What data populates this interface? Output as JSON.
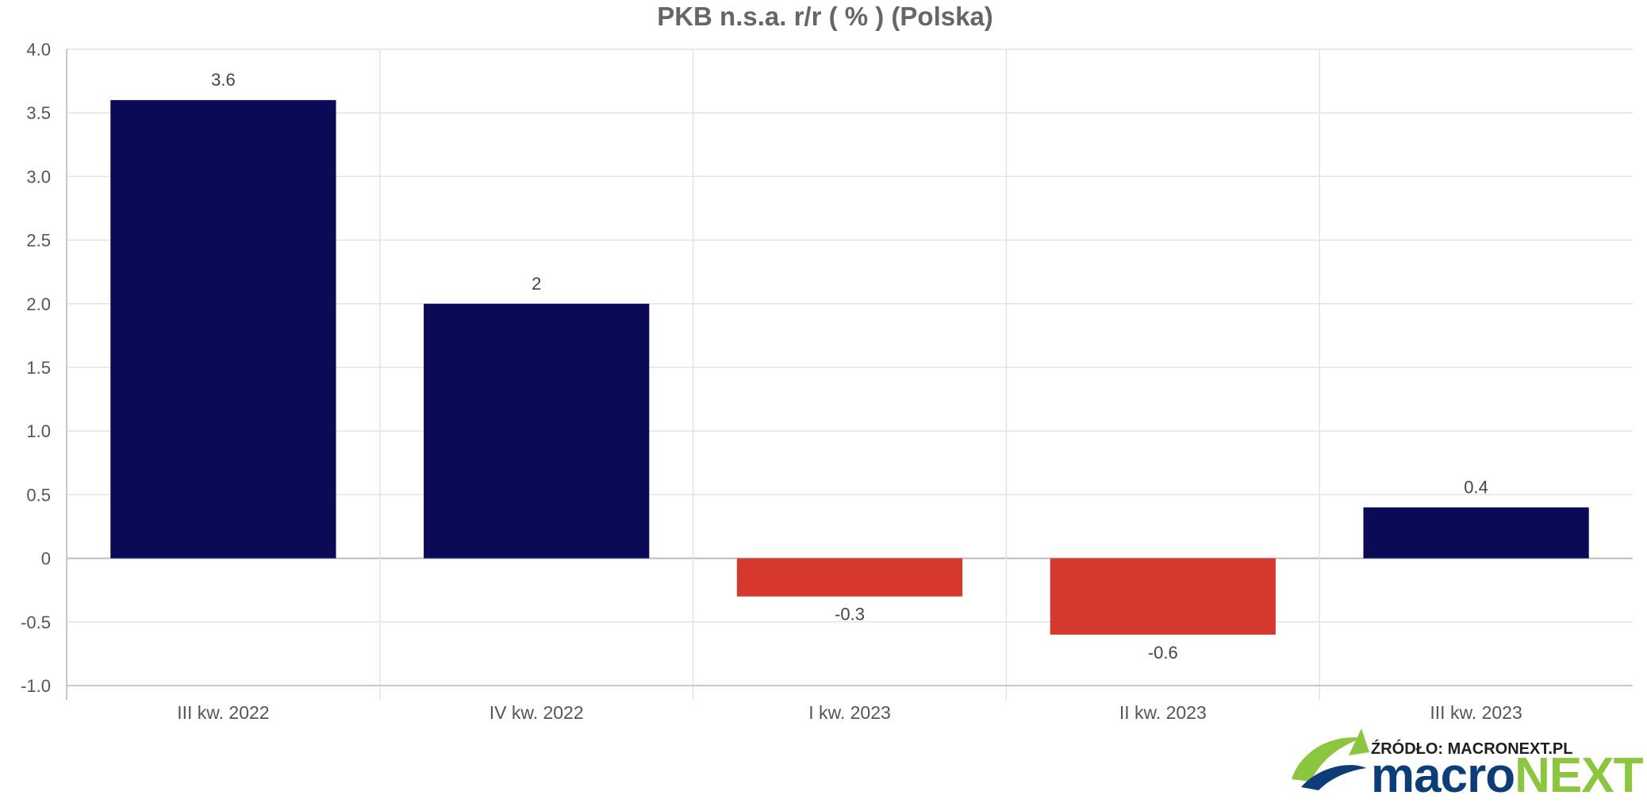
{
  "chart_data": {
    "type": "bar",
    "title": "PKB n.s.a. r/r ( % ) (Polska)",
    "categories": [
      "III kw. 2022",
      "IV kw. 2022",
      "I kw. 2023",
      "II kw. 2023",
      "III kw. 2023"
    ],
    "values": [
      3.6,
      2,
      -0.3,
      -0.6,
      0.4
    ],
    "value_labels": [
      "3.6",
      "2",
      "-0.3",
      "-0.6",
      "0.4"
    ],
    "ylim": [
      -1.0,
      4.0
    ],
    "yticks": [
      {
        "value": 4.0,
        "label": "4.0"
      },
      {
        "value": 3.5,
        "label": "3.5"
      },
      {
        "value": 3.0,
        "label": "3.0"
      },
      {
        "value": 2.5,
        "label": "2.5"
      },
      {
        "value": 2.0,
        "label": "2.0"
      },
      {
        "value": 1.5,
        "label": "1.5"
      },
      {
        "value": 1.0,
        "label": "1.0"
      },
      {
        "value": 0.5,
        "label": "0.5"
      },
      {
        "value": 0,
        "label": "0"
      },
      {
        "value": -0.5,
        "label": "-0.5"
      },
      {
        "value": -1.0,
        "label": "-1.0"
      }
    ],
    "grid": true,
    "colors": {
      "positive": "#0a0a56",
      "negative": "#d5382e",
      "grid": "#e3e3e3",
      "axis": "#c8c8c8"
    }
  },
  "footer": {
    "source_text": "ŹRÓDŁO: MACRONEXT.PL",
    "brand_part1": "macro",
    "brand_part2": "NEXT",
    "brand_color1": "#0d3d78",
    "brand_color2": "#8cc63f"
  }
}
